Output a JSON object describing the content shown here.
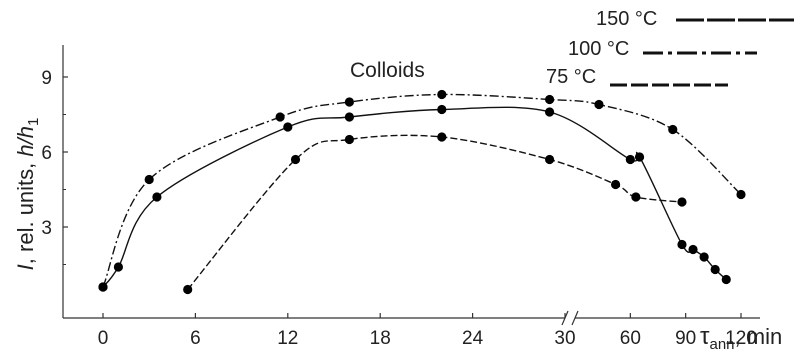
{
  "chart_data": {
    "type": "line",
    "title": "",
    "annotation": "Colloids",
    "ylabel_parts": [
      "I",
      ", rel. units, ",
      "h/h",
      "1"
    ],
    "xlabel_parts": [
      "τ",
      "ann",
      ", min"
    ],
    "x_segment_1_range": [
      0,
      30
    ],
    "x_segment_2_range": [
      30,
      120
    ],
    "ylim": [
      0,
      10
    ],
    "x_ticks": [
      {
        "value": 0,
        "label": "0"
      },
      {
        "value": 6,
        "label": "6"
      },
      {
        "value": 12,
        "label": "12"
      },
      {
        "value": 18,
        "label": "18"
      },
      {
        "value": 24,
        "label": "24"
      },
      {
        "value": 30,
        "label": "30"
      },
      {
        "value": 60,
        "label": "60"
      },
      {
        "value": 90,
        "label": "90"
      },
      {
        "value": 120,
        "label": "120"
      }
    ],
    "y_ticks": [
      {
        "value": 3,
        "label": "3"
      },
      {
        "value": 6,
        "label": "6"
      },
      {
        "value": 9,
        "label": "9"
      }
    ],
    "grid": false,
    "legend_position": "top-right",
    "series": [
      {
        "name": "150 °C",
        "line_style": "solid",
        "points": [
          [
            0,
            0.6
          ],
          [
            1,
            1.4
          ],
          [
            3.5,
            4.2
          ],
          [
            12,
            7.0
          ],
          [
            16,
            7.4
          ],
          [
            22,
            7.7
          ],
          [
            29,
            7.6
          ],
          [
            60,
            5.7
          ],
          [
            65,
            5.8
          ],
          [
            88,
            2.3
          ],
          [
            94,
            2.1
          ],
          [
            100,
            1.8
          ],
          [
            106,
            1.3
          ],
          [
            112,
            0.9
          ]
        ]
      },
      {
        "name": "100 °C",
        "line_style": "dash-dot",
        "points": [
          [
            0,
            0.6
          ],
          [
            3,
            4.9
          ],
          [
            11.5,
            7.4
          ],
          [
            16,
            8.0
          ],
          [
            22,
            8.3
          ],
          [
            29,
            8.1
          ],
          [
            43,
            7.9
          ],
          [
            83,
            6.9
          ],
          [
            120,
            4.3
          ]
        ]
      },
      {
        "name": "75 °C",
        "line_style": "dashed",
        "points": [
          [
            5.5,
            0.5
          ],
          [
            12.5,
            5.7
          ],
          [
            16,
            6.5
          ],
          [
            22,
            6.6
          ],
          [
            29,
            5.7
          ],
          [
            52,
            4.7
          ],
          [
            63,
            4.2
          ],
          [
            88,
            4.0
          ]
        ]
      }
    ]
  }
}
